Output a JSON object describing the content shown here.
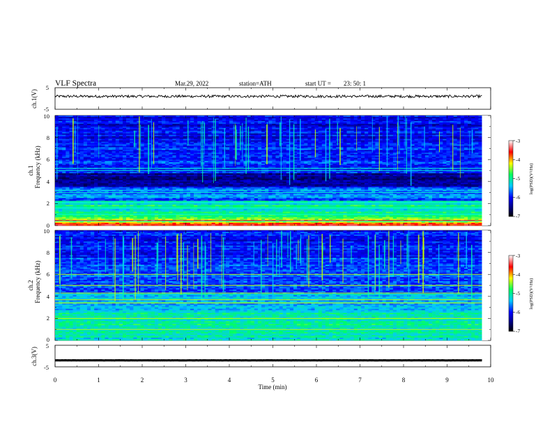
{
  "header": {
    "title": "VLF  Spectra",
    "date": "Mar.29, 2022",
    "station": "station=ATH",
    "start_label": "start  UT  =",
    "start_time": "23: 50: 1"
  },
  "chart_data": [
    {
      "type": "line",
      "panel": "ch1-waveform",
      "ylabel": "ch.1(V)",
      "ylim": [
        -5,
        5
      ],
      "yticks": [
        "5",
        "-5"
      ],
      "xlim": [
        0,
        10
      ],
      "trace_level": 1.0,
      "trace_amplitude": 0.6,
      "x_end": 9.8
    },
    {
      "type": "heatmap",
      "panel": "ch1-spectrogram",
      "ylabel": "Frequency  (kHz)",
      "channel_label": "ch.1",
      "ylim": [
        0,
        10
      ],
      "yticks": [
        "0",
        "2",
        "4",
        "6",
        "8",
        "10"
      ],
      "xlim": [
        0,
        10
      ],
      "x_end": 9.8,
      "colorbar": {
        "label": "log(PSD)(V²/Hz)",
        "ticks": [
          "-3",
          "-4",
          "-5",
          "-6",
          "-7"
        ],
        "range": [
          -7,
          -3
        ]
      }
    },
    {
      "type": "heatmap",
      "panel": "ch2-spectrogram",
      "ylabel": "Frequency  (kHz)",
      "channel_label": "ch.2",
      "ylim": [
        0,
        10
      ],
      "yticks": [
        "0",
        "2",
        "4",
        "6",
        "8",
        "10"
      ],
      "xlim": [
        0,
        10
      ],
      "x_end": 9.8,
      "colorbar": {
        "label": "log(PSD)(V²/Hz)",
        "ticks": [
          "-3",
          "-4",
          "-5",
          "-6",
          "-7"
        ],
        "range": [
          -7,
          -3
        ]
      }
    },
    {
      "type": "line",
      "panel": "ch3-waveform",
      "ylabel": "ch.3(V)",
      "ylim": [
        -5,
        5
      ],
      "yticks": [
        "5",
        "-5"
      ],
      "xlim": [
        0,
        10
      ],
      "trace_level": -2.0,
      "trace_amplitude": 0.1,
      "x_end": 9.8,
      "xlabel": "Time  (min)",
      "xticks": [
        "0",
        "1",
        "2",
        "3",
        "4",
        "5",
        "6",
        "7",
        "8",
        "9",
        "10"
      ]
    }
  ]
}
